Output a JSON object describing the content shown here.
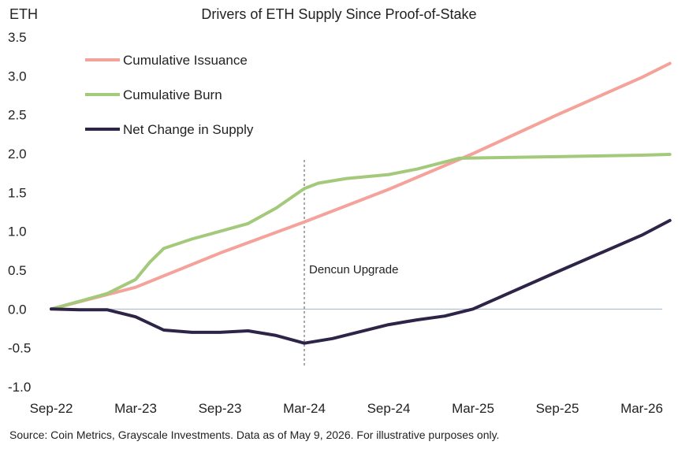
{
  "chart_data": {
    "type": "line",
    "title": "Drivers of ETH Supply Since Proof-of-Stake",
    "ylabel": "ETH",
    "xlabel": "",
    "ylim": [
      -1.0,
      3.5
    ],
    "y_ticks": [
      "3.5",
      "3.0",
      "2.5",
      "2.0",
      "1.5",
      "1.0",
      "0.5",
      "0.0",
      "-0.5",
      "-1.0"
    ],
    "x_ticks": [
      "Sep-22",
      "Mar-23",
      "Sep-23",
      "Mar-24",
      "Sep-24",
      "Mar-25",
      "Sep-25",
      "Mar-26"
    ],
    "grid": false,
    "legend_position": "top-left",
    "annotation": {
      "label": "Dencun Upgrade",
      "x": "Mar-24"
    },
    "source": "Source: Coin Metrics, Grayscale Investments. Data as of May 9, 2026. For illustrative purposes only.",
    "series": [
      {
        "name": "Cumulative Issuance",
        "color": "#f4a29a",
        "x": [
          "Sep-22",
          "Mar-23",
          "Sep-23",
          "Mar-24",
          "Sep-24",
          "Mar-25",
          "Sep-25",
          "Mar-26",
          "May-26"
        ],
        "values": [
          0.0,
          0.28,
          0.72,
          1.12,
          1.54,
          2.0,
          2.5,
          2.98,
          3.16
        ]
      },
      {
        "name": "Cumulative Burn",
        "color": "#a3c97a",
        "x": [
          "Sep-22",
          "Nov-22",
          "Jan-23",
          "Mar-23",
          "Apr-23",
          "May-23",
          "Jul-23",
          "Sep-23",
          "Nov-23",
          "Jan-24",
          "Mar-24",
          "Apr-24",
          "Jun-24",
          "Sep-24",
          "Nov-24",
          "Feb-25",
          "Sep-25",
          "Mar-26",
          "May-26"
        ],
        "values": [
          0.0,
          0.1,
          0.2,
          0.38,
          0.6,
          0.78,
          0.9,
          1.0,
          1.1,
          1.3,
          1.55,
          1.62,
          1.68,
          1.73,
          1.8,
          1.94,
          1.96,
          1.98,
          1.99
        ]
      },
      {
        "name": "Net Change in Supply",
        "color": "#2e2447",
        "x": [
          "Sep-22",
          "Nov-22",
          "Jan-23",
          "Mar-23",
          "May-23",
          "Jul-23",
          "Sep-23",
          "Nov-23",
          "Jan-24",
          "Mar-24",
          "May-24",
          "Sep-24",
          "Nov-24",
          "Jan-25",
          "Mar-25",
          "Sep-25",
          "Mar-26",
          "May-26"
        ],
        "values": [
          0.0,
          -0.01,
          -0.01,
          -0.1,
          -0.27,
          -0.3,
          -0.3,
          -0.28,
          -0.34,
          -0.44,
          -0.38,
          -0.2,
          -0.14,
          -0.09,
          0.0,
          0.48,
          0.95,
          1.14
        ]
      }
    ]
  }
}
